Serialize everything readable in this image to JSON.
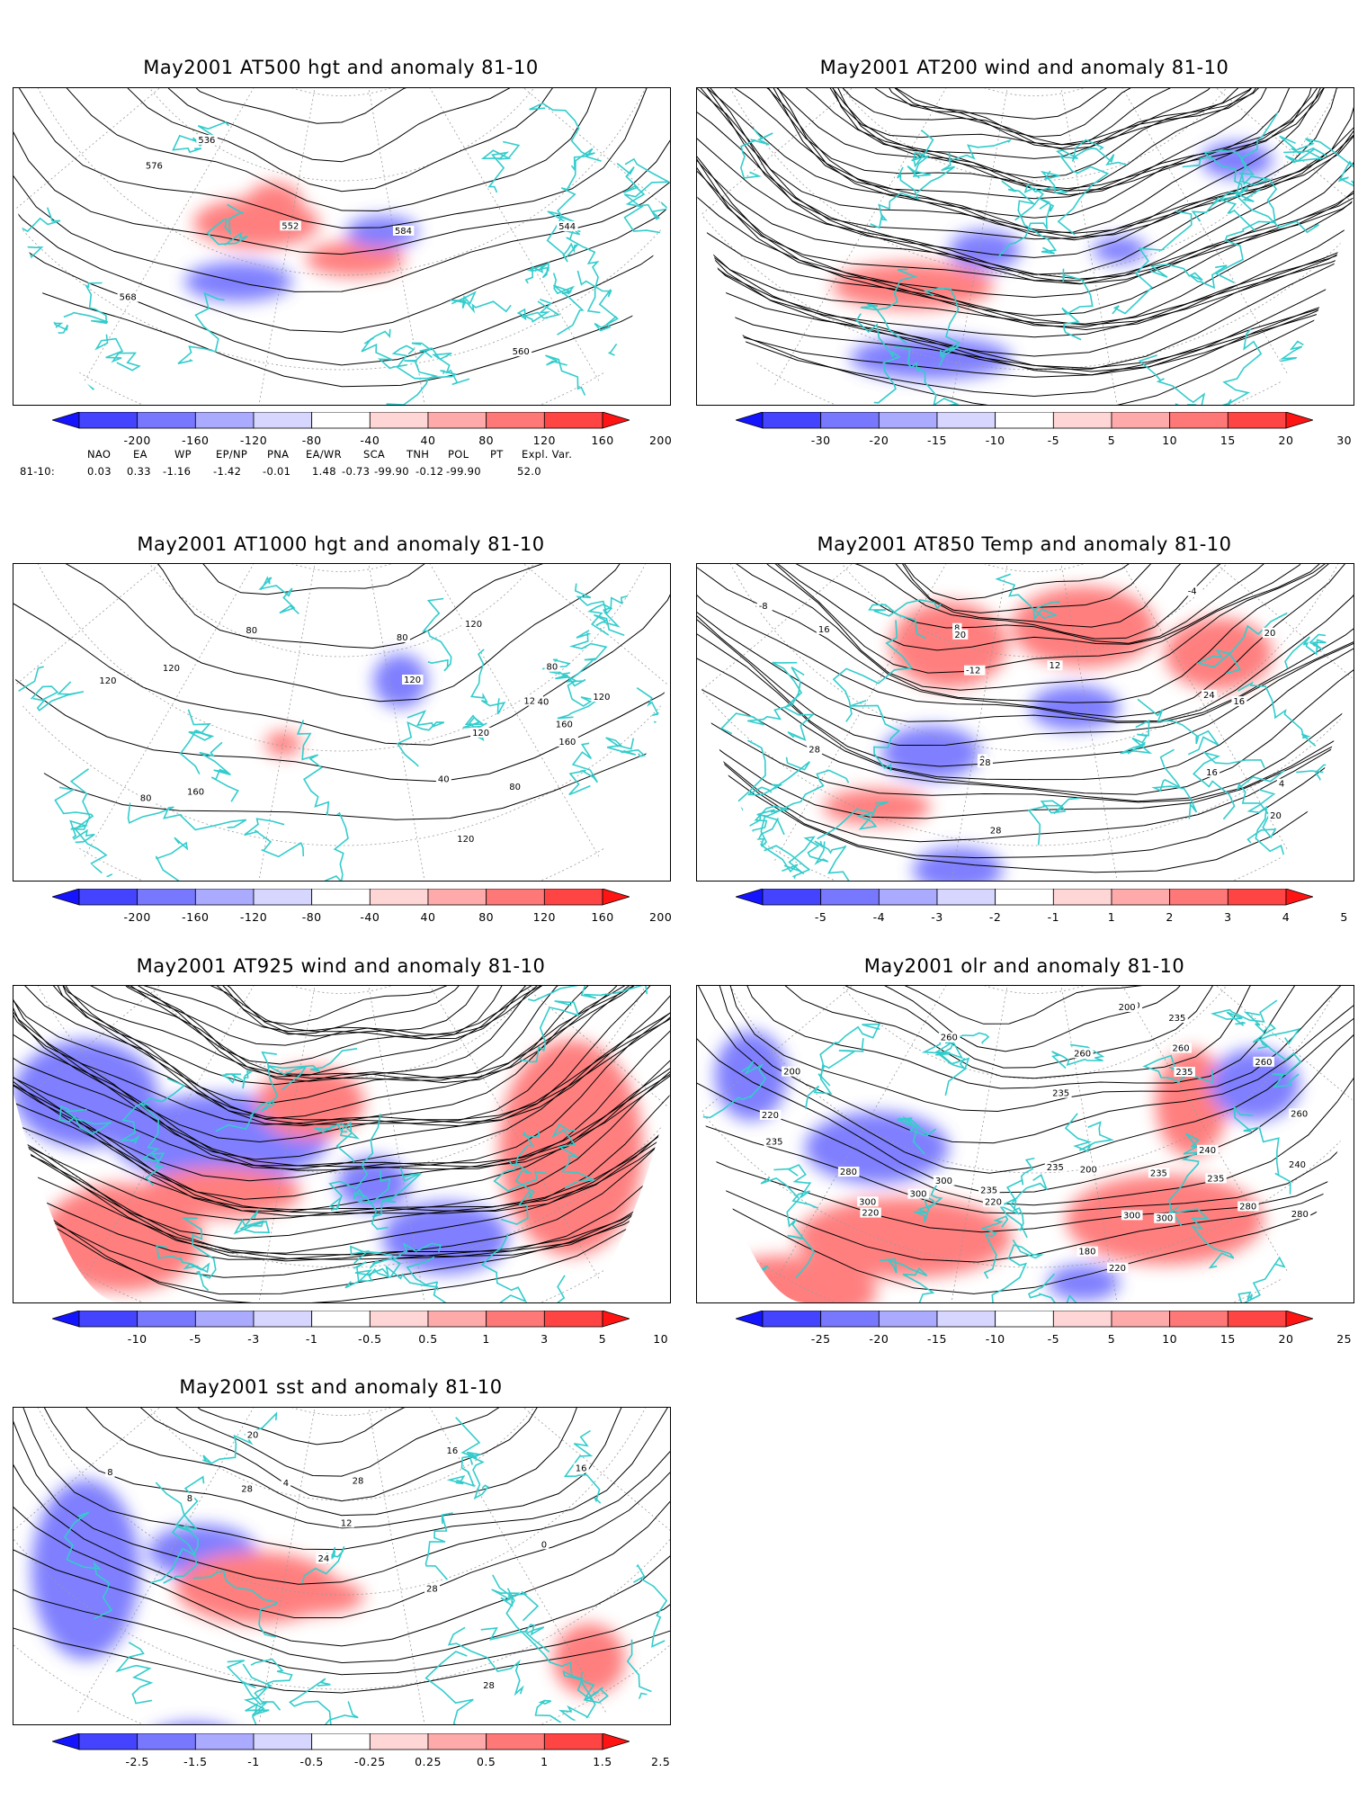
{
  "panels": [
    {
      "id": "p1",
      "title": "May2001 AT500 hgt and anomaly 81-10",
      "contour_labels": [
        "536",
        "544",
        "552",
        "560",
        "568",
        "576",
        "584"
      ],
      "colorbar": {
        "labels": [
          "-200",
          "-160",
          "-120",
          "-80",
          "-40",
          "40",
          "80",
          "120",
          "160",
          "200"
        ],
        "colors": [
          "#1414ff",
          "#4444ff",
          "#7878ff",
          "#aaaaff",
          "#d6d6ff",
          "#ffffff",
          "#ffd6d6",
          "#ffaaaa",
          "#ff7878",
          "#ff4444",
          "#ff1414"
        ]
      }
    },
    {
      "id": "p2",
      "title": "May2001 AT200 wind and anomaly 81-10",
      "contour_labels": [],
      "colorbar": {
        "labels": [
          "-30",
          "-20",
          "-15",
          "-10",
          "-5",
          "5",
          "10",
          "15",
          "20",
          "30"
        ],
        "colors": [
          "#1414ff",
          "#4444ff",
          "#7878ff",
          "#aaaaff",
          "#d6d6ff",
          "#ffffff",
          "#ffd6d6",
          "#ffaaaa",
          "#ff7878",
          "#ff4444",
          "#ff1414"
        ]
      }
    },
    {
      "id": "p3",
      "title": "May2001 AT1000 hgt and anomaly 81-10",
      "contour_labels": [
        "120",
        "160",
        "120",
        "120",
        "160",
        "80",
        "120",
        "40",
        "80",
        "120",
        "160",
        "120",
        "80",
        "80",
        "120",
        "80",
        "120",
        "40"
      ],
      "colorbar": {
        "labels": [
          "-200",
          "-160",
          "-120",
          "-80",
          "-40",
          "40",
          "80",
          "120",
          "160",
          "200"
        ],
        "colors": [
          "#1414ff",
          "#4444ff",
          "#7878ff",
          "#aaaaff",
          "#d6d6ff",
          "#ffffff",
          "#ffd6d6",
          "#ffaaaa",
          "#ff7878",
          "#ff4444",
          "#ff1414"
        ]
      }
    },
    {
      "id": "p4",
      "title": "May2001 AT850 Temp and anomaly 81-10",
      "contour_labels": [
        "20",
        "16",
        "-12",
        "-8",
        "-4",
        "0",
        "4",
        "8",
        "12",
        "16",
        "20",
        "28",
        "16",
        "24",
        "28",
        "28",
        "20"
      ],
      "colorbar": {
        "labels": [
          "-5",
          "-4",
          "-3",
          "-2",
          "-1",
          "1",
          "2",
          "3",
          "4",
          "5"
        ],
        "colors": [
          "#1414ff",
          "#4444ff",
          "#7878ff",
          "#aaaaff",
          "#d6d6ff",
          "#ffffff",
          "#ffd6d6",
          "#ffaaaa",
          "#ff7878",
          "#ff4444",
          "#ff1414"
        ]
      }
    },
    {
      "id": "p5",
      "title": "May2001 AT925 wind and anomaly 81-10",
      "contour_labels": [],
      "colorbar": {
        "labels": [
          "-10",
          "-5",
          "-3",
          "-1",
          "-0.5",
          "0.5",
          "1",
          "3",
          "5",
          "10"
        ],
        "colors": [
          "#1414ff",
          "#4444ff",
          "#7878ff",
          "#aaaaff",
          "#d6d6ff",
          "#ffffff",
          "#ffd6d6",
          "#ffaaaa",
          "#ff7878",
          "#ff4444",
          "#ff1414"
        ]
      }
    },
    {
      "id": "p6",
      "title": "May2001 olr and anomaly 81-10",
      "contour_labels": [
        "235",
        "220",
        "200",
        "240",
        "180",
        "200",
        "235",
        "235",
        "220",
        "260",
        "235",
        "220",
        "300",
        "235",
        "235",
        "260",
        "300",
        "280",
        "300",
        "260",
        "280",
        "300",
        "235",
        "240",
        "260",
        "235",
        "220",
        "200",
        "220",
        "260",
        "280",
        "300"
      ],
      "colorbar": {
        "labels": [
          "-25",
          "-20",
          "-15",
          "-10",
          "-5",
          "5",
          "10",
          "15",
          "20",
          "25"
        ],
        "colors": [
          "#1414ff",
          "#4444ff",
          "#7878ff",
          "#aaaaff",
          "#d6d6ff",
          "#ffffff",
          "#ffd6d6",
          "#ffaaaa",
          "#ff7878",
          "#ff4444",
          "#ff1414"
        ]
      }
    },
    {
      "id": "p7",
      "title": "May2001 sst and anomaly 81-10",
      "contour_labels": [
        "28",
        "0",
        "4",
        "8",
        "12",
        "16",
        "20",
        "24",
        "28",
        "28",
        "8",
        "16",
        "28"
      ],
      "colorbar": {
        "labels": [
          "-2.5",
          "-1.5",
          "-1",
          "-0.5",
          "-0.25",
          "0.25",
          "0.5",
          "1",
          "1.5",
          "2.5"
        ],
        "colors": [
          "#1414ff",
          "#4444ff",
          "#7878ff",
          "#aaaaff",
          "#d6d6ff",
          "#ffffff",
          "#ffd6d6",
          "#ffaaaa",
          "#ff7878",
          "#ff4444",
          "#ff1414"
        ]
      }
    }
  ],
  "teleconnection": {
    "headers": [
      "NAO",
      "EA",
      "WP",
      "EP/NP",
      "PNA",
      "EA/WR",
      "SCA",
      "TNH",
      "POL",
      "PT",
      "Expl. Var."
    ],
    "row_label": "81-10:",
    "values": [
      "0.03",
      "0.33",
      "-1.16",
      "-1.42",
      "-0.01",
      "1.48",
      "-0.73",
      "-99.90",
      "-0.12",
      "-99.90",
      "52.0"
    ]
  },
  "map_colors": {
    "coast": "#33cccc",
    "contour": "#000000",
    "grid": "#9a9a9a",
    "anom_pos": "#ff5555",
    "anom_neg": "#5555ff"
  }
}
